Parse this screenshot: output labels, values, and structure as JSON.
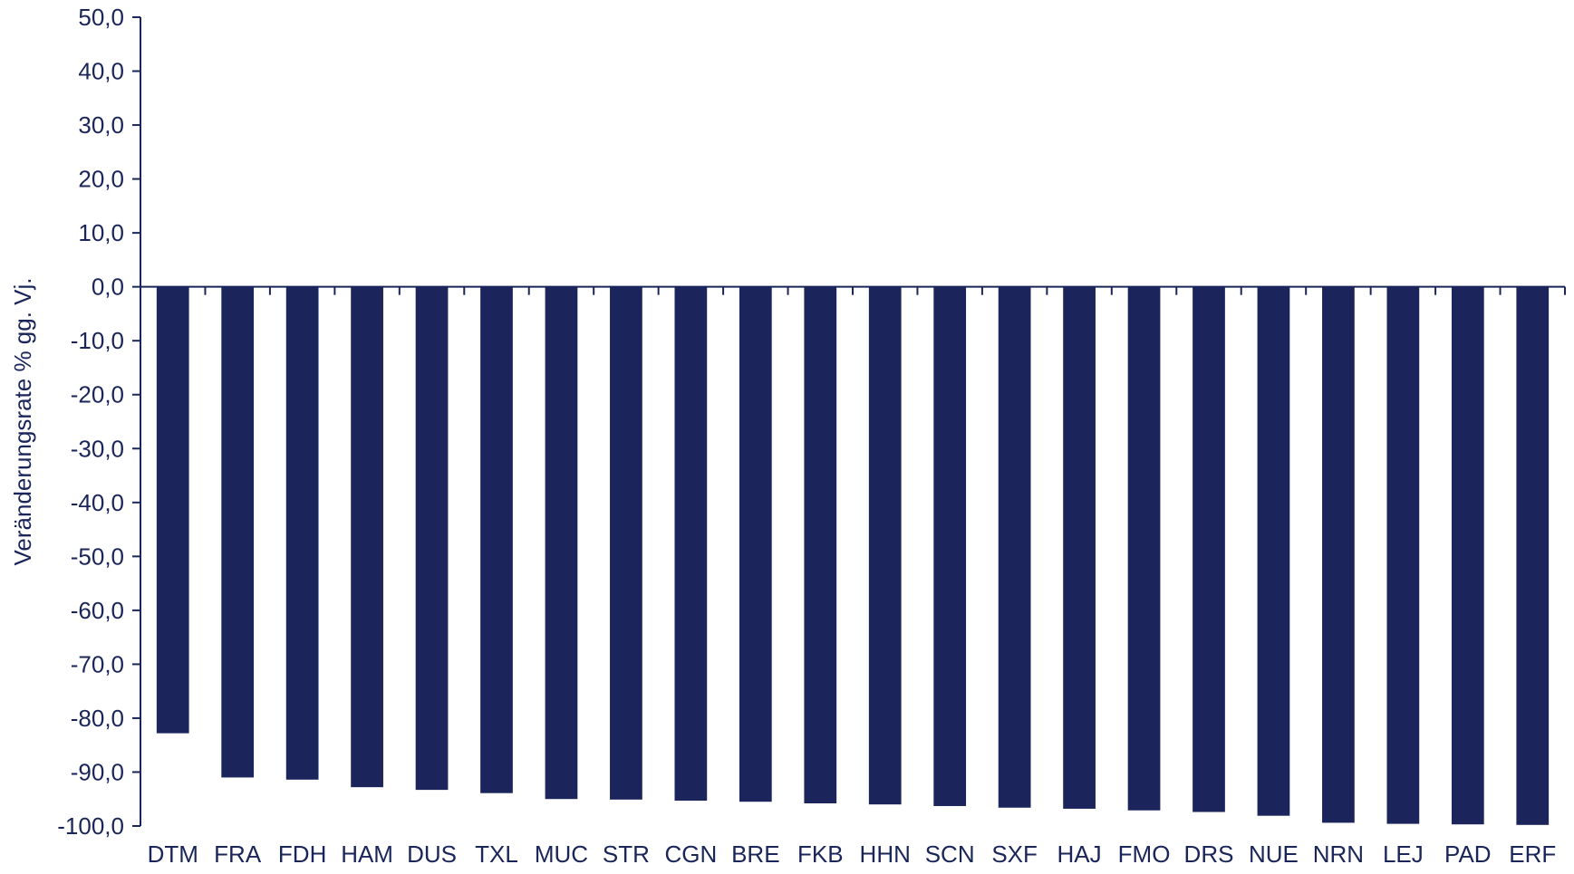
{
  "colors": {
    "bar": "#1b255c",
    "axis": "#1a2559",
    "text": "#1a2559",
    "background": "#ffffff"
  },
  "chart_data": {
    "type": "bar",
    "title": "",
    "xlabel": "",
    "ylabel": "Veränderungsrate % gg. Vj.",
    "ylim": [
      -100,
      50
    ],
    "ytick_step": 10,
    "ytick_labels": [
      "50,0",
      "40,0",
      "30,0",
      "20,0",
      "10,0",
      "0,0",
      "-10,0",
      "-20,0",
      "-30,0",
      "-40,0",
      "-50,0",
      "-60,0",
      "-70,0",
      "-80,0",
      "-90,0",
      "-100,0"
    ],
    "grid": false,
    "legend": "none",
    "categories": [
      "DTM",
      "FRA",
      "FDH",
      "HAM",
      "DUS",
      "TXL",
      "MUC",
      "STR",
      "CGN",
      "BRE",
      "FKB",
      "HHN",
      "SCN",
      "SXF",
      "HAJ",
      "FMO",
      "DRS",
      "NUE",
      "NRN",
      "LEJ",
      "PAD",
      "ERF"
    ],
    "values": [
      -82.8,
      -91.0,
      -91.4,
      -92.8,
      -93.3,
      -93.9,
      -95.0,
      -95.1,
      -95.3,
      -95.5,
      -95.8,
      -96.0,
      -96.3,
      -96.6,
      -96.8,
      -97.1,
      -97.4,
      -98.1,
      -99.4,
      -99.6,
      -99.7,
      -99.8
    ]
  }
}
